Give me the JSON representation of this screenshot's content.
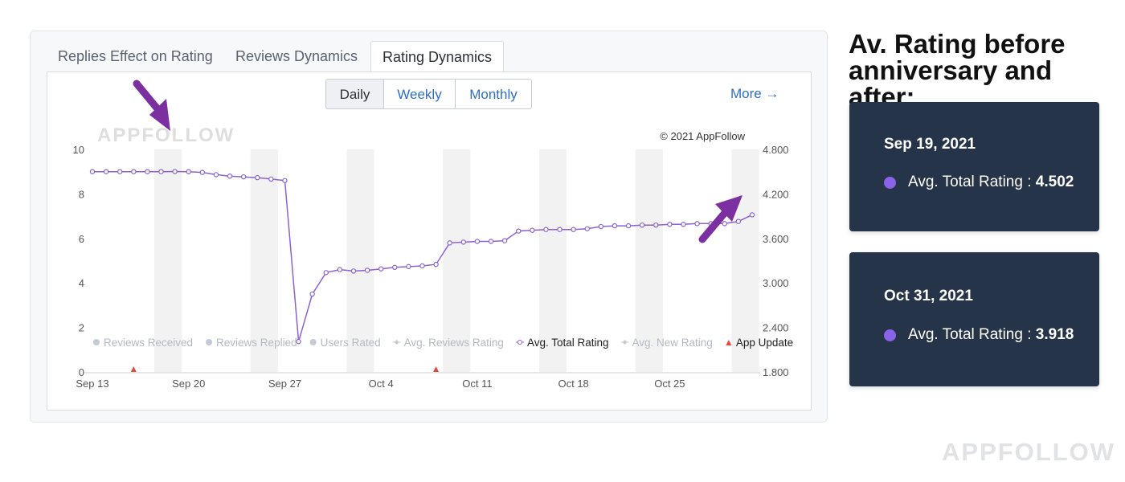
{
  "tabs": [
    {
      "label": "Replies Effect on Rating",
      "active": false
    },
    {
      "label": "Reviews Dynamics",
      "active": false
    },
    {
      "label": "Rating Dynamics",
      "active": true
    }
  ],
  "period_toggle": {
    "options": [
      "Daily",
      "Weekly",
      "Monthly"
    ],
    "selected": "Daily"
  },
  "more_link": "More →",
  "chart_data": {
    "type": "line",
    "watermark": "APPFOLLOW",
    "copyright": "© 2021 AppFollow",
    "x_ticks": [
      "Sep 13",
      "Sep 20",
      "Sep 27",
      "Oct 4",
      "Oct 11",
      "Oct 18",
      "Oct 25"
    ],
    "y_left": {
      "ticks": [
        "0",
        "2",
        "4",
        "6",
        "8",
        "10"
      ],
      "range": [
        0,
        10
      ]
    },
    "y_right": {
      "ticks": [
        "1.800",
        "2.400",
        "3.000",
        "3.600",
        "4.200",
        "4.800"
      ],
      "range": [
        1.8,
        4.8
      ]
    },
    "x": [
      "Sep 13",
      "Sep 14",
      "Sep 15",
      "Sep 16",
      "Sep 17",
      "Sep 18",
      "Sep 19",
      "Sep 20",
      "Sep 21",
      "Sep 22",
      "Sep 23",
      "Sep 24",
      "Sep 25",
      "Sep 26",
      "Sep 27",
      "Sep 28",
      "Sep 29",
      "Sep 30",
      "Oct 1",
      "Oct 2",
      "Oct 3",
      "Oct 4",
      "Oct 5",
      "Oct 6",
      "Oct 7",
      "Oct 8",
      "Oct 9",
      "Oct 10",
      "Oct 11",
      "Oct 12",
      "Oct 13",
      "Oct 14",
      "Oct 15",
      "Oct 16",
      "Oct 17",
      "Oct 18",
      "Oct 19",
      "Oct 20",
      "Oct 21",
      "Oct 22",
      "Oct 23",
      "Oct 24",
      "Oct 25",
      "Oct 26",
      "Oct 27",
      "Oct 28",
      "Oct 29",
      "Oct 30",
      "Oct 31"
    ],
    "series": [
      {
        "name": "Avg. Total Rating",
        "color": "#8a63d2",
        "values": [
          4.5,
          4.5,
          4.5,
          4.5,
          4.5,
          4.5,
          4.502,
          4.5,
          4.49,
          4.46,
          4.44,
          4.43,
          4.42,
          4.4,
          4.38,
          2.21,
          2.85,
          3.14,
          3.18,
          3.16,
          3.17,
          3.19,
          3.21,
          3.22,
          3.23,
          3.25,
          3.54,
          3.55,
          3.56,
          3.56,
          3.57,
          3.7,
          3.71,
          3.72,
          3.72,
          3.72,
          3.73,
          3.76,
          3.77,
          3.77,
          3.78,
          3.78,
          3.79,
          3.79,
          3.8,
          3.8,
          3.8,
          3.83,
          3.918
        ]
      }
    ],
    "app_updates": [
      "Sep 16",
      "Oct 8"
    ],
    "weekend_bands": [
      [
        "Sep 18",
        "Sep 19"
      ],
      [
        "Sep 25",
        "Sep 26"
      ],
      [
        "Oct 2",
        "Oct 3"
      ],
      [
        "Oct 9",
        "Oct 10"
      ],
      [
        "Oct 16",
        "Oct 17"
      ],
      [
        "Oct 23",
        "Oct 24"
      ],
      [
        "Oct 30",
        "Oct 31"
      ]
    ],
    "legend": [
      {
        "label": "Reviews Received",
        "marker": "dot",
        "active": false
      },
      {
        "label": "Reviews Replied",
        "marker": "dot",
        "active": false
      },
      {
        "label": "Users Rated",
        "marker": "dot",
        "active": false
      },
      {
        "label": "Avg. Reviews Rating",
        "marker": "diamond-line",
        "active": false
      },
      {
        "label": "Avg. Total Rating",
        "marker": "circle-line",
        "active": true
      },
      {
        "label": "Avg. New Rating",
        "marker": "diamond-line",
        "active": false
      },
      {
        "label": "App Update",
        "marker": "triangle",
        "active": true
      }
    ],
    "highlight_arrows": [
      "Sep 19",
      "Oct 31"
    ]
  },
  "title": "Av. Rating before anniversary and after:",
  "info_cards": [
    {
      "date": "Sep 19, 2021",
      "label": "Avg. Total Rating : ",
      "value": "4.502"
    },
    {
      "date": "Oct 31, 2021",
      "label": "Avg. Total Rating : ",
      "value": "3.918"
    }
  ],
  "brand_watermark": "APPFOLLOW",
  "colors": {
    "accent_line": "#8a63d2",
    "arrow": "#7b2fa0",
    "card_bg": "#253449",
    "link": "#2e6fc4"
  }
}
